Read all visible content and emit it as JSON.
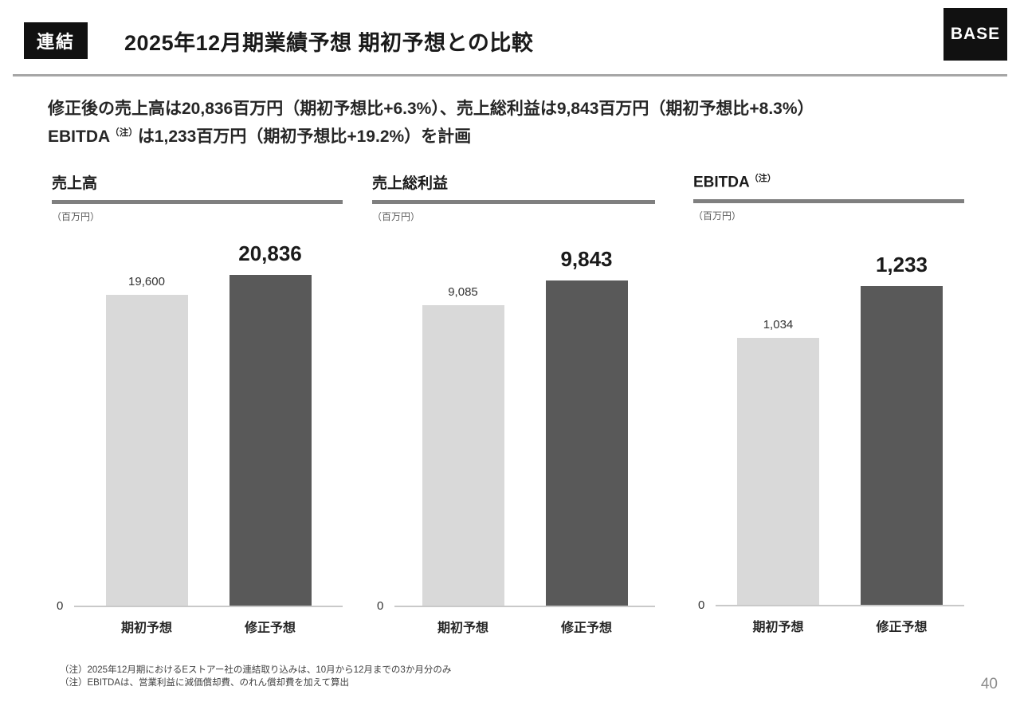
{
  "header": {
    "badge": "連結",
    "title": "2025年12月期業績予想 期初予想との比較",
    "logo_text": "BASE"
  },
  "lead": {
    "line1": "修正後の売上高は20,836百万円（期初予想比+6.3%）、売上総利益は9,843百万円（期初予想比+8.3%）",
    "line2_prefix": "EBITDA",
    "line2_sup": "（注）",
    "line2_suffix": "は1,233百万円（期初予想比+19.2%）を計画"
  },
  "chart_data": [
    {
      "type": "bar",
      "title": "売上高",
      "title_sup": "",
      "unit_label": "（百万円）",
      "categories": [
        "期初予想",
        "修正予想"
      ],
      "values": [
        19600,
        20836
      ],
      "value_labels": [
        "19,600",
        "20,836"
      ],
      "zero_label": "0",
      "ylim": [
        0,
        20836
      ],
      "bar_colors": [
        "#d9d9d9",
        "#595959"
      ],
      "grid": false,
      "legend": "none"
    },
    {
      "type": "bar",
      "title": "売上総利益",
      "title_sup": "",
      "unit_label": "（百万円）",
      "categories": [
        "期初予想",
        "修正予想"
      ],
      "values": [
        9085,
        9843
      ],
      "value_labels": [
        "9,085",
        "9,843"
      ],
      "zero_label": "0",
      "ylim": [
        0,
        9843
      ],
      "bar_colors": [
        "#d9d9d9",
        "#595959"
      ],
      "grid": false,
      "legend": "none"
    },
    {
      "type": "bar",
      "title": "EBITDA",
      "title_sup": "（注）",
      "unit_label": "（百万円）",
      "categories": [
        "期初予想",
        "修正予想"
      ],
      "values": [
        1034,
        1233
      ],
      "value_labels": [
        "1,034",
        "1,233"
      ],
      "zero_label": "0",
      "ylim": [
        0,
        1233
      ],
      "bar_colors": [
        "#d9d9d9",
        "#595959"
      ],
      "grid": false,
      "legend": "none"
    }
  ],
  "footnotes": [
    "（注）2025年12月期におけるEストアー社の連結取り込みは、10月から12月までの3か月分のみ",
    "（注）EBITDAは、営業利益に減価償却費、のれん償却費を加えて算出"
  ],
  "page_number": "40",
  "colors": {
    "bar_initial": "#d9d9d9",
    "bar_revised": "#595959",
    "title_rule": "#7f7f7f",
    "divider": "#a6a6a6",
    "badge_bg": "#111111",
    "logo_bg": "#111111"
  }
}
